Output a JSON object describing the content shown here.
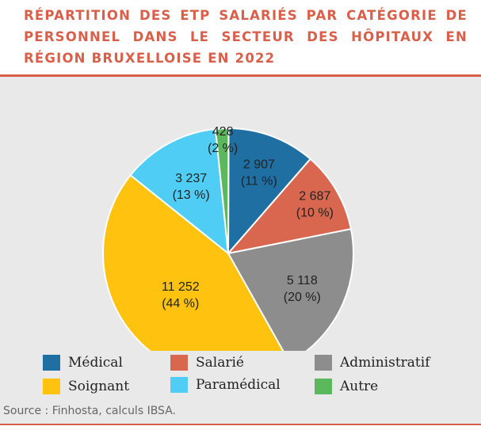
{
  "title": "RÉPARTITION DES ETP SALARIÉS PAR CATÉGORIE DE PERSONNEL DANS LE SECTEUR DES HÔPITAUX EN RÉGION BRUXELLOISE EN 2022",
  "source": "Source : Finhosta, calculs IBSA.",
  "colors": {
    "accent": "#d8604a",
    "panel": "#e9e9e9"
  },
  "chart_data": {
    "type": "pie",
    "title": "RÉPARTITION DES ETP SALARIÉS PAR CATÉGORIE DE PERSONNEL DANS LE SECTEUR DES HÔPITAUX EN RÉGION BRUXELLOISE EN 2022",
    "legend_position": "bottom",
    "slices": [
      {
        "name": "Médical",
        "value": 2907,
        "value_label": "2 907",
        "percent_label": "(11 %)",
        "color": "#1f6fa3"
      },
      {
        "name": "Salarié",
        "value": 2687,
        "value_label": "2 687",
        "percent_label": "(10 %)",
        "color": "#d9674f"
      },
      {
        "name": "Administratif",
        "value": 5118,
        "value_label": "5 118",
        "percent_label": "(20 %)",
        "color": "#8d8d8d"
      },
      {
        "name": "Soignant",
        "value": 11252,
        "value_label": "11 252",
        "percent_label": "(44 %)",
        "color": "#ffc20e"
      },
      {
        "name": "Paramédical",
        "value": 3237,
        "value_label": "3 237",
        "percent_label": "(13 %)",
        "color": "#4fcdf4"
      },
      {
        "name": "Autre",
        "value": 428,
        "value_label": "428",
        "percent_label": "(2 %)",
        "color": "#5cb85c"
      }
    ],
    "legend_order": [
      "Médical",
      "Salarié",
      "Administratif",
      "Soignant",
      "Paramédical",
      "Autre"
    ]
  }
}
